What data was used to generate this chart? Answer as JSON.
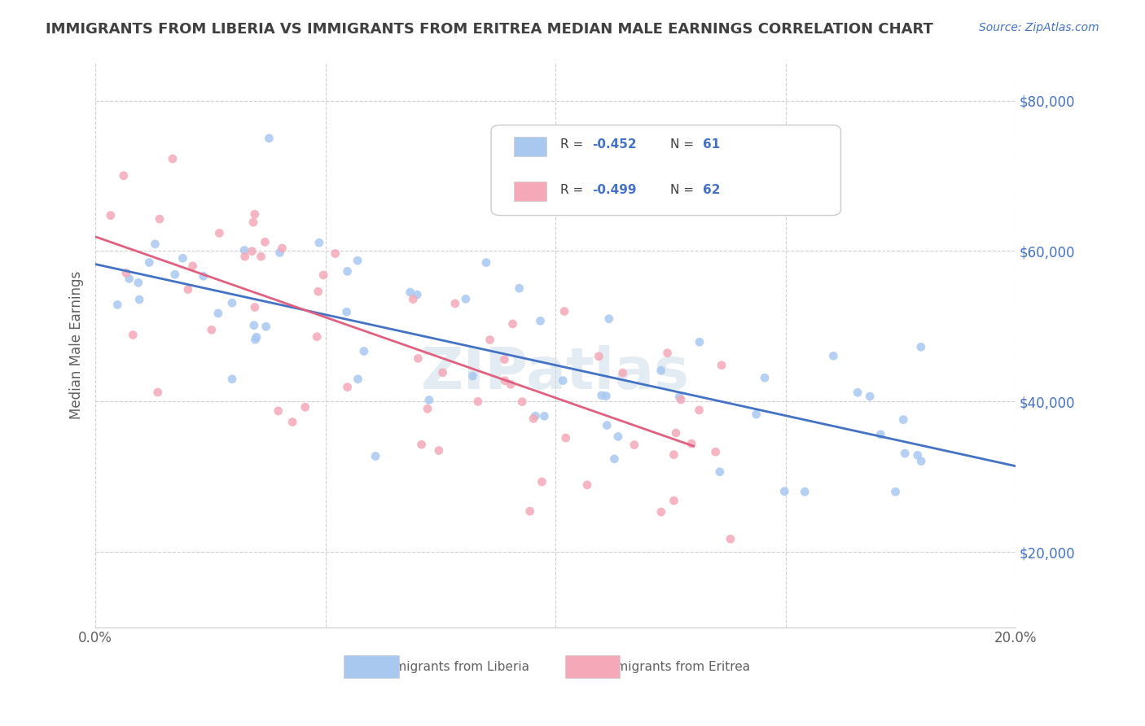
{
  "title": "IMMIGRANTS FROM LIBERIA VS IMMIGRANTS FROM ERITREA MEDIAN MALE EARNINGS CORRELATION CHART",
  "source": "Source: ZipAtlas.com",
  "xlabel": "",
  "ylabel": "Median Male Earnings",
  "xlim": [
    0.0,
    0.2
  ],
  "ylim": [
    10000,
    85000
  ],
  "yticks": [
    20000,
    40000,
    60000,
    80000
  ],
  "ytick_labels": [
    "$20,000",
    "$40,000",
    "$60,000",
    "$80,000"
  ],
  "xticks": [
    0.0,
    0.05,
    0.1,
    0.15,
    0.2
  ],
  "xtick_labels": [
    "0.0%",
    "",
    "",
    "",
    "20.0%"
  ],
  "liberia_R": -0.452,
  "liberia_N": 61,
  "eritrea_R": -0.499,
  "eritrea_N": 62,
  "liberia_color": "#a8c8f0",
  "eritrea_color": "#f4a8b8",
  "liberia_line_color": "#4472c4",
  "eritrea_line_color": "#e06080",
  "watermark": "ZIPatlas",
  "watermark_color": "#c8d8e8",
  "background_color": "#ffffff",
  "grid_color": "#d0d0d0",
  "title_color": "#404040",
  "source_color": "#4472c4",
  "legend_text_color": "#404040",
  "legend_value_color": "#4472c4"
}
